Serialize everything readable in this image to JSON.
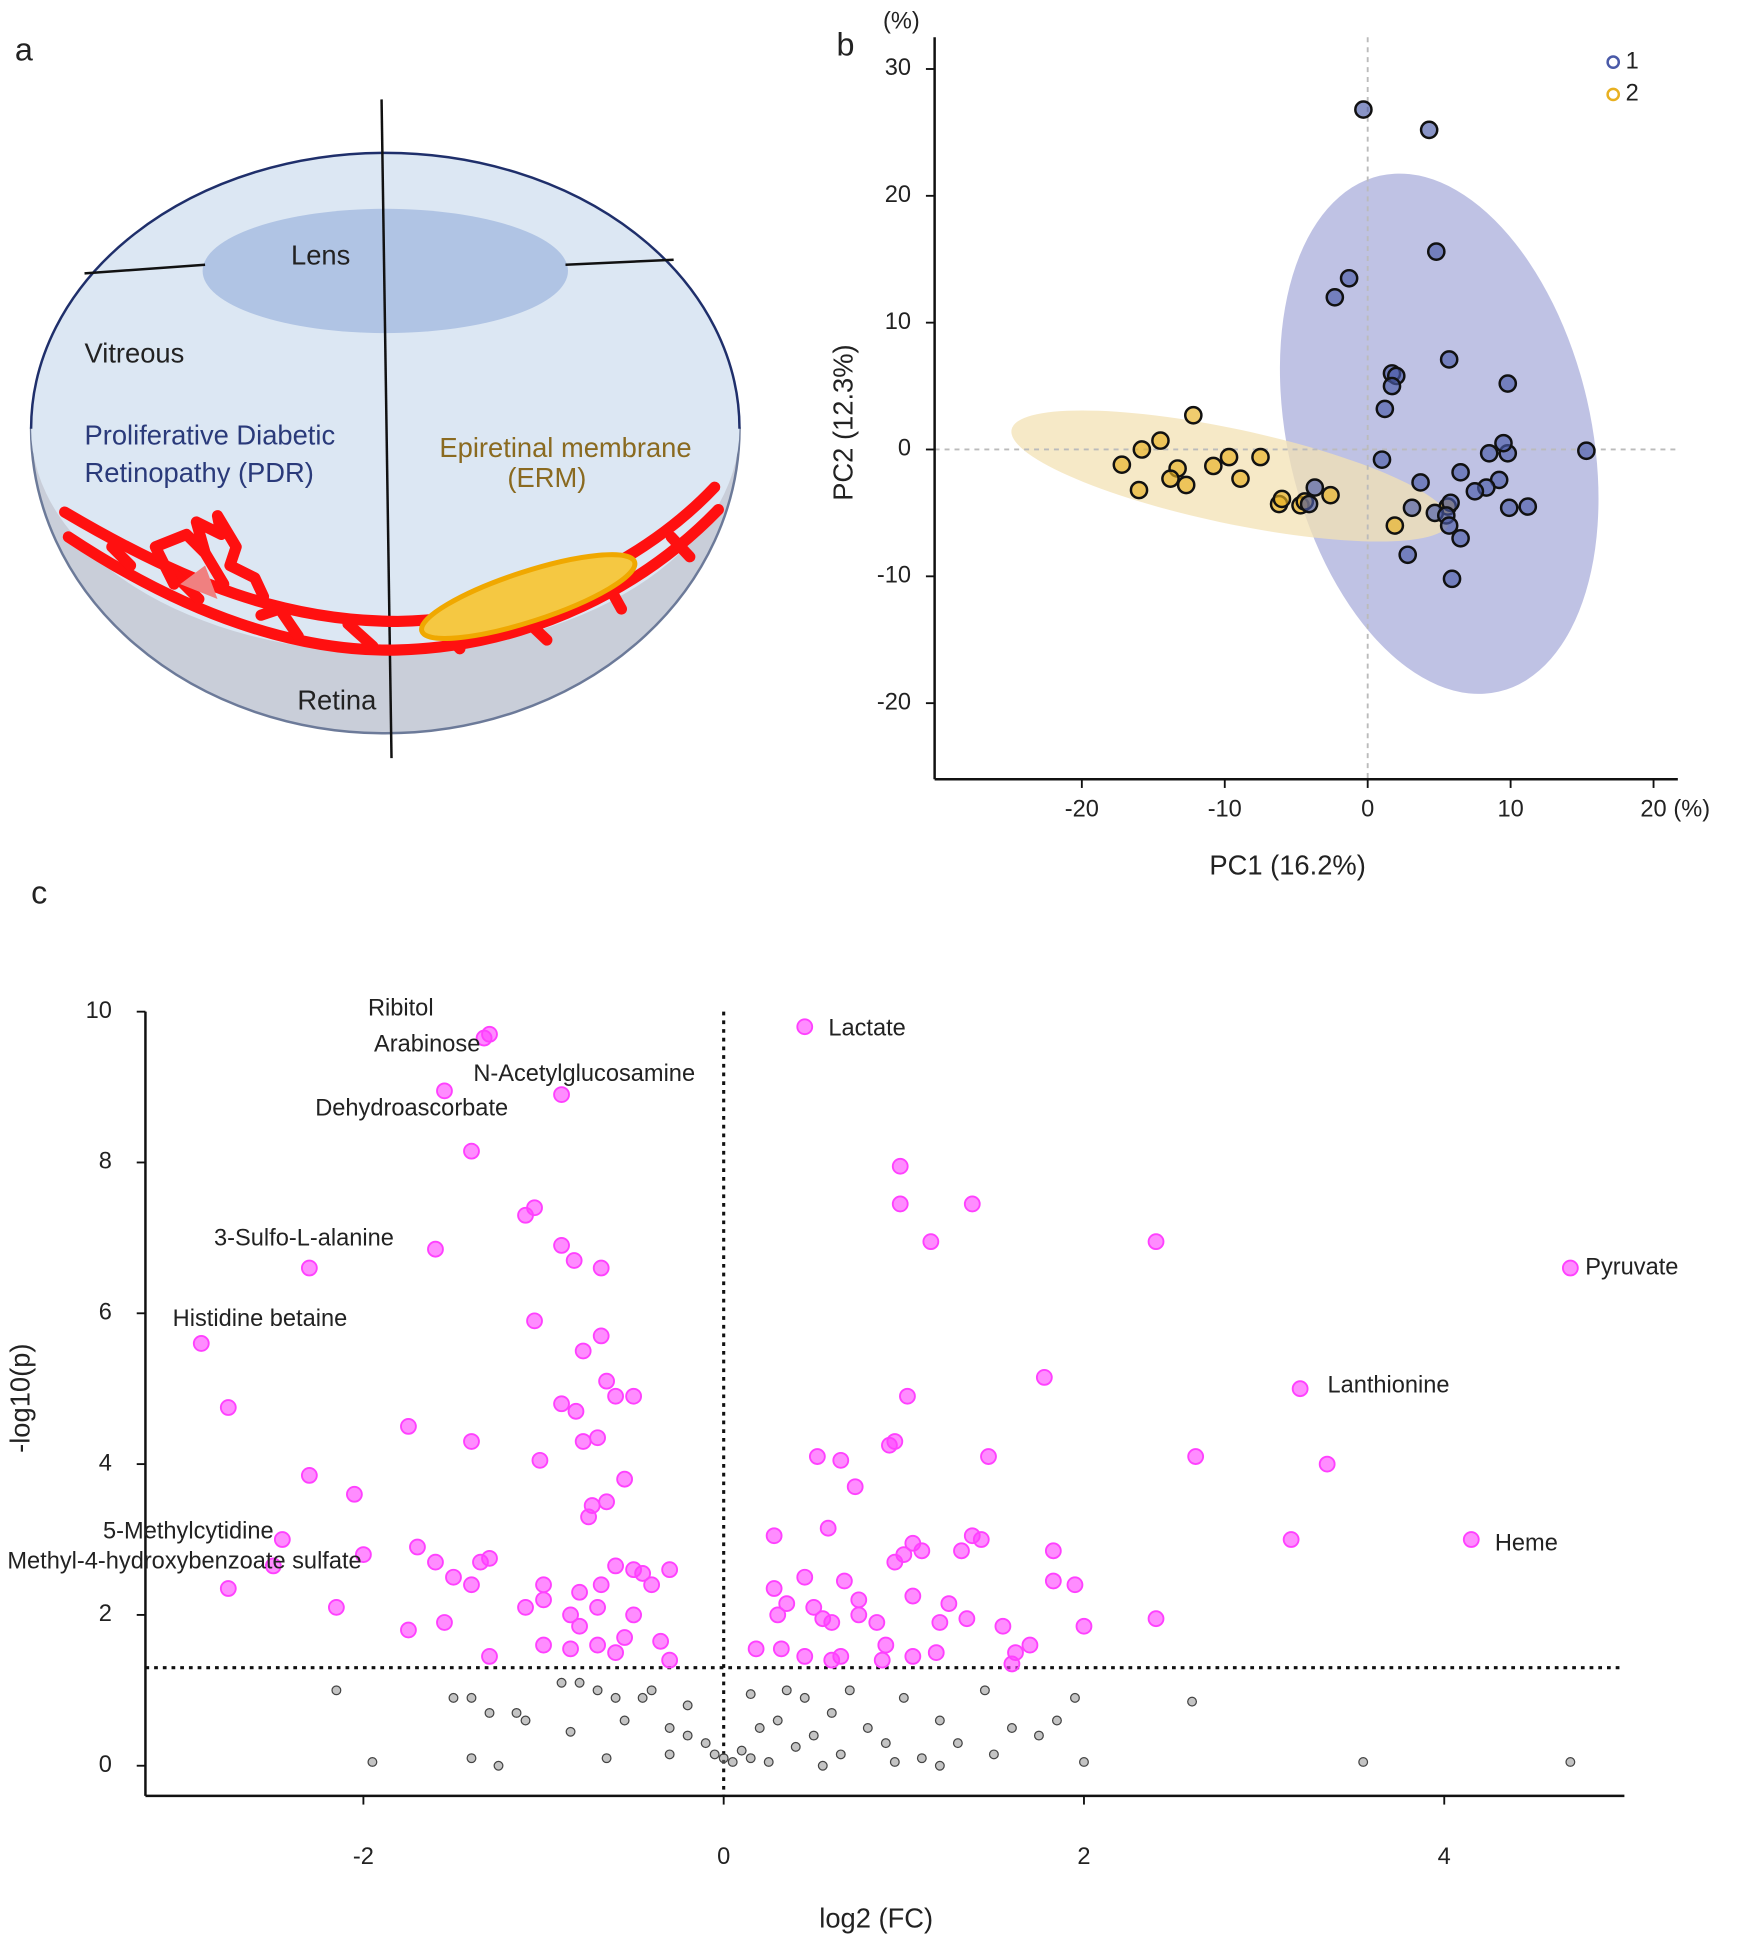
{
  "diagram": {
    "panel": "a",
    "lens": "Lens",
    "vitreous": "Vitreous",
    "pdr": [
      "Proliferative Diabetic",
      "Retinopathy (PDR)"
    ],
    "erm": [
      "Epiretinal membrane",
      "(ERM)"
    ],
    "retina": "Retina"
  },
  "chart_data": [
    {
      "type": "scatter",
      "panel": "b",
      "xlabel": "PC1 (16.2%)",
      "ylabel": "PC2 (12.3%)",
      "x_unit": "(%)",
      "y_unit": "(%)",
      "xlim": [
        -30.3,
        21.7
      ],
      "ylim": [
        -26,
        32.5
      ],
      "xticks": [
        -20,
        -10,
        0,
        10,
        20
      ],
      "yticks": [
        -20,
        -10,
        0,
        10,
        20,
        30
      ],
      "zero_lines": true,
      "legend": "top-right",
      "series": [
        {
          "name": "1",
          "color": "#4a5aa8",
          "x": [
            -0.3,
            4.3,
            4.8,
            -1.3,
            -2.3,
            5.7,
            9.8,
            1.7,
            2,
            1.7,
            1.2,
            15.3,
            8.5,
            9.8,
            9.5,
            1,
            6.5,
            3.7,
            9.2,
            8.3,
            7.5,
            5.8,
            11.2,
            9.9,
            3.1,
            4.7,
            5.5,
            5.7,
            6.5,
            2.8,
            5.9,
            -3.7,
            -4.1
          ],
          "values": [
            26.8,
            25.2,
            15.6,
            13.5,
            12,
            7.1,
            5.2,
            6,
            5.8,
            5,
            3.2,
            -0.1,
            -0.3,
            -0.3,
            0.5,
            -0.8,
            -1.8,
            -2.6,
            -2.4,
            -3,
            -3.3,
            -4.2,
            -4.5,
            -4.6,
            -4.6,
            -5,
            -5.2,
            -6,
            -7,
            -8.3,
            -10.2,
            -3,
            -4.3
          ]
        },
        {
          "name": "2",
          "color": "#e8b020",
          "x": [
            -17.2,
            -15.8,
            -14.5,
            -16,
            -12.2,
            -13.3,
            -13.8,
            -12.7,
            -10.8,
            -9.7,
            -8.9,
            -7.5,
            -6.2,
            -6,
            -4.7,
            -4.4,
            -2.6,
            1.9,
            5.6
          ],
          "values": [
            -1.2,
            0,
            0.7,
            -3.2,
            2.7,
            -1.5,
            -2.3,
            -2.8,
            -1.3,
            -0.6,
            -2.3,
            -0.6,
            -4.3,
            -3.9,
            -4.4,
            -4.1,
            -3.6,
            -6,
            -4.5
          ]
        }
      ]
    },
    {
      "type": "scatter",
      "panel": "c",
      "xlabel": "log2 (FC)",
      "ylabel": "-log10(p)",
      "xlim": [
        -3.21,
        5
      ],
      "ylim": [
        -0.4,
        10
      ],
      "xticks": [
        -2,
        0,
        2,
        4
      ],
      "yticks": [
        0,
        2,
        4,
        6,
        8,
        10
      ],
      "hline": 1.3,
      "vline": 0,
      "series": [
        {
          "color": "#ff40ff",
          "x": [
            -1.4,
            -1.1,
            -1.05,
            -0.9,
            -0.83,
            -0.68,
            -1.6,
            -1.05,
            -0.78,
            -0.68,
            -0.65,
            -0.6,
            -0.5,
            -0.9,
            -0.82,
            -0.78,
            -0.7,
            -1.75,
            -1.4,
            -1.02,
            -2.75,
            -2.3,
            -2.05,
            -0.55,
            -0.65,
            -0.73,
            -0.75,
            -1.7,
            -2.0,
            -1.6,
            -1.3,
            -1.35,
            -1.4,
            -1.5,
            -2.75,
            -2.15,
            -1.55,
            -1.75,
            -1.3,
            -1.1,
            -1.0,
            -1.0,
            -0.8,
            -0.85,
            -0.8,
            -0.7,
            -0.68,
            -0.6,
            -0.5,
            -0.45,
            -0.4,
            -0.3,
            -0.5,
            -0.35,
            -0.3,
            -0.6,
            -0.7,
            -0.85,
            -1.0,
            -0.55,
            0.98,
            0.98,
            1.38,
            1.15,
            2.4,
            1.78,
            1.02,
            0.95,
            0.92,
            0.52,
            0.65,
            1.47,
            0.73,
            2.62,
            3.35,
            3.15,
            0.28,
            0.58,
            1.38,
            1.43,
            1.05,
            1.1,
            1.0,
            0.95,
            1.32,
            1.83,
            0.45,
            0.67,
            1.83,
            1.95,
            0.28,
            0.75,
            1.05,
            1.25,
            1.2,
            1.35,
            1.55,
            0.3,
            0.35,
            0.5,
            0.55,
            0.6,
            0.75,
            0.85,
            2.0,
            2.4,
            0.18,
            0.32,
            0.45,
            0.65,
            0.9,
            0.88,
            1.05,
            1.18,
            1.62,
            1.7,
            1.6,
            0.6
          ],
          "values": [
            8.15,
            7.3,
            7.4,
            6.9,
            6.7,
            6.6,
            6.85,
            5.9,
            5.5,
            5.7,
            5.1,
            4.9,
            4.9,
            4.8,
            4.7,
            4.3,
            4.35,
            4.5,
            4.3,
            4.05,
            4.75,
            3.85,
            3.6,
            3.8,
            3.5,
            3.45,
            3.3,
            2.9,
            2.8,
            2.7,
            2.75,
            2.7,
            2.4,
            2.5,
            2.35,
            2.1,
            1.9,
            1.8,
            1.45,
            2.1,
            2.2,
            2.4,
            2.3,
            2.0,
            1.85,
            2.1,
            2.4,
            2.65,
            2.6,
            2.55,
            2.4,
            2.6,
            2.0,
            1.65,
            1.4,
            1.5,
            1.6,
            1.55,
            1.6,
            1.7,
            7.95,
            7.45,
            7.45,
            6.95,
            6.95,
            5.15,
            4.9,
            4.3,
            4.25,
            4.1,
            4.05,
            4.1,
            3.7,
            4.1,
            4.0,
            3.0,
            3.05,
            3.15,
            3.05,
            3.0,
            2.95,
            2.85,
            2.8,
            2.7,
            2.85,
            2.85,
            2.5,
            2.45,
            2.45,
            2.4,
            2.35,
            2.2,
            2.25,
            2.15,
            1.9,
            1.95,
            1.85,
            2.0,
            2.15,
            2.1,
            1.95,
            1.9,
            2.0,
            1.9,
            1.85,
            1.95,
            1.55,
            1.55,
            1.45,
            1.45,
            1.6,
            1.4,
            1.45,
            1.5,
            1.5,
            1.6,
            1.35,
            1.4
          ]
        },
        {
          "color": "#8a8a8a",
          "x": [
            -2.15,
            -1.5,
            -1.4,
            -1.3,
            -1.15,
            -1.1,
            -0.9,
            -0.8,
            -0.7,
            -0.6,
            -0.45,
            -0.4,
            -0.55,
            -0.3,
            -0.2,
            -0.1,
            -0.05,
            0.0,
            0.05,
            0.1,
            0.15,
            0.2,
            0.3,
            0.35,
            0.45,
            0.5,
            0.6,
            0.7,
            0.8,
            0.9,
            1.0,
            1.1,
            1.2,
            1.3,
            1.45,
            1.6,
            1.75,
            1.95,
            2.0,
            2.6,
            3.55,
            4.7,
            -1.25,
            -0.65,
            -0.3,
            0.25,
            0.55,
            0.95,
            1.5,
            -1.4,
            -1.95,
            -0.85,
            0.15,
            0.4,
            -0.2,
            0.65,
            1.85,
            1.2
          ],
          "values": [
            1.0,
            0.9,
            0.9,
            0.7,
            0.7,
            0.6,
            1.1,
            1.1,
            1.0,
            0.9,
            0.9,
            1.0,
            0.6,
            0.5,
            0.4,
            0.3,
            0.15,
            0.1,
            0.05,
            0.2,
            0.1,
            0.5,
            0.6,
            1.0,
            0.9,
            0.4,
            0.7,
            1.0,
            0.5,
            0.3,
            0.9,
            0.1,
            0.6,
            0.3,
            1.0,
            0.5,
            0.4,
            0.9,
            0.05,
            0.85,
            0.05,
            0.05,
            0.0,
            0.1,
            0.15,
            0.05,
            0.0,
            0.05,
            0.15,
            0.1,
            0.05,
            0.45,
            0.95,
            0.25,
            0.8,
            0.15,
            0.6,
            0.0
          ]
        }
      ],
      "annotations": [
        {
          "text": "Ribitol",
          "x": -1.3,
          "y": 9.7
        },
        {
          "text": "Arabinose",
          "x": -1.33,
          "y": 9.65
        },
        {
          "text": "N-Acetylglucosamine",
          "x": -0.9,
          "y": 8.9
        },
        {
          "text": "Dehydroascorbate",
          "x": -1.55,
          "y": 8.95
        },
        {
          "text": "3-Sulfo-L-alanine",
          "x": -2.3,
          "y": 6.6
        },
        {
          "text": "Histidine betaine",
          "x": -2.9,
          "y": 5.6
        },
        {
          "text": "Lactate",
          "x": 0.45,
          "y": 9.8
        },
        {
          "text": "Pyruvate",
          "x": 4.7,
          "y": 6.6
        },
        {
          "text": "Lanthionine",
          "x": 3.2,
          "y": 5.0
        },
        {
          "text": "Heme",
          "x": 4.15,
          "y": 3.0
        },
        {
          "text": "5-Methylcytidine",
          "x": -2.45,
          "y": 3.0
        },
        {
          "text": "Methyl-4-hydroxybenzoate sulfate",
          "x": -2.5,
          "y": 2.65
        }
      ]
    }
  ]
}
